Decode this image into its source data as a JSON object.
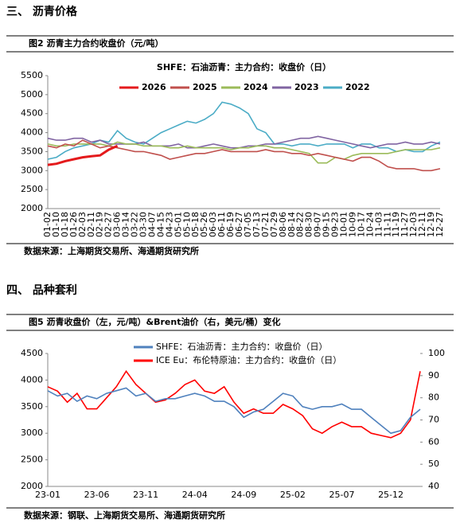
{
  "chart_data": [
    {
      "type": "line",
      "section": "三、  沥青价格",
      "title": "图2  沥青主力合约收盘价（元/吨）",
      "subtitle": "SHFE：石油沥青：主力合约：收盘价（日）",
      "source": "数据来源：上海期货交易所、海通期货研究所",
      "categories": [
        "01-02",
        "01-10",
        "01-18",
        "01-26",
        "02-03",
        "02-11",
        "02-19",
        "02-27",
        "03-06",
        "03-14",
        "03-22",
        "03-30",
        "04-07",
        "04-15",
        "04-23",
        "05-01",
        "05-10",
        "05-18",
        "05-26",
        "06-03",
        "06-11",
        "06-19",
        "06-27",
        "07-05",
        "07-13",
        "07-21",
        "07-29",
        "08-06",
        "08-14",
        "08-22",
        "08-30",
        "09-07",
        "09-15",
        "09-23",
        "10-01",
        "10-09",
        "10-17",
        "10-24",
        "11-03",
        "11-11",
        "11-19",
        "11-27",
        "12-03",
        "12-11",
        "12-19",
        "12-27"
      ],
      "ylim": [
        2000,
        5500
      ],
      "yticks": [
        2000,
        2500,
        3000,
        3500,
        4000,
        4500,
        5000,
        5500
      ],
      "series": [
        {
          "name": "2026",
          "color": "#e41a1c",
          "values": [
            3150,
            3180,
            3250,
            3300,
            3350,
            3380,
            3400,
            3550,
            3650,
            null,
            null,
            null,
            null,
            null,
            null,
            null,
            null,
            null,
            null,
            null,
            null,
            null,
            null,
            null,
            null,
            null,
            null,
            null,
            null,
            null,
            null,
            null,
            null,
            null,
            null,
            null,
            null,
            null,
            null,
            null,
            null,
            null,
            null,
            null,
            null,
            null
          ]
        },
        {
          "name": "2025",
          "color": "#c0504d",
          "values": [
            3650,
            3600,
            3700,
            3650,
            3800,
            3700,
            3600,
            3650,
            3600,
            3550,
            3500,
            3500,
            3450,
            3400,
            3300,
            3350,
            3400,
            3450,
            3450,
            3500,
            3550,
            3500,
            3500,
            3500,
            3500,
            3550,
            3500,
            3500,
            3450,
            3450,
            3400,
            3450,
            3400,
            3350,
            3300,
            3250,
            3350,
            3350,
            3250,
            3100,
            3050,
            3050,
            3050,
            3000,
            3000,
            3050
          ]
        },
        {
          "name": "2024",
          "color": "#9bbb59",
          "values": [
            3700,
            3650,
            3650,
            3700,
            3700,
            3700,
            3700,
            3650,
            3750,
            3700,
            3700,
            3650,
            3650,
            3650,
            3600,
            3600,
            3650,
            3600,
            3600,
            3600,
            3600,
            3550,
            3600,
            3600,
            3650,
            3650,
            3600,
            3600,
            3550,
            3500,
            3450,
            3200,
            3200,
            3350,
            3300,
            3400,
            3450,
            3450,
            3450,
            3450,
            3500,
            3550,
            3550,
            3550,
            3550,
            3600
          ]
        },
        {
          "name": "2023",
          "color": "#8064a2",
          "values": [
            3850,
            3800,
            3800,
            3850,
            3850,
            3750,
            3800,
            3700,
            3700,
            3700,
            3700,
            3750,
            3650,
            3650,
            3650,
            3700,
            3600,
            3600,
            3650,
            3700,
            3650,
            3600,
            3600,
            3650,
            3650,
            3700,
            3700,
            3750,
            3800,
            3850,
            3850,
            3900,
            3850,
            3800,
            3750,
            3700,
            3650,
            3600,
            3650,
            3700,
            3700,
            3750,
            3700,
            3700,
            3750,
            3700
          ]
        },
        {
          "name": "2022",
          "color": "#4bacc6",
          "values": [
            3300,
            3350,
            3500,
            3600,
            3650,
            3700,
            3800,
            3750,
            4050,
            3850,
            3750,
            3700,
            3850,
            4000,
            4100,
            4200,
            4300,
            4250,
            4350,
            4500,
            4800,
            4750,
            4650,
            4500,
            4100,
            4000,
            3700,
            3700,
            3650,
            3700,
            3700,
            3650,
            3700,
            3700,
            3700,
            3600,
            3700,
            3700,
            3600,
            3600,
            3500,
            3550,
            3500,
            3500,
            3650,
            3750
          ]
        }
      ]
    },
    {
      "type": "line",
      "section": "四、  品种套利",
      "title": "图5  沥青收盘价（左，元/吨）&Brent油价（右，美元/桶）变化",
      "source": "数据来源：钢联、上海期货交易所、海通期货研究所",
      "categories": [
        "23-01",
        null,
        null,
        null,
        null,
        "23-06",
        null,
        null,
        null,
        null,
        "23-11",
        null,
        null,
        null,
        null,
        "24-04",
        null,
        null,
        null,
        null,
        "24-09",
        null,
        null,
        null,
        null,
        "25-02",
        null,
        null,
        null,
        null,
        "25-07",
        null,
        null,
        null,
        null,
        "25-12",
        null,
        null,
        null
      ],
      "ylim": [
        2000,
        4500
      ],
      "yticks": [
        2000,
        2500,
        3000,
        3500,
        4000,
        4500
      ],
      "y2lim": [
        40,
        100
      ],
      "y2ticks": [
        40,
        50,
        60,
        70,
        80,
        90,
        100
      ],
      "series": [
        {
          "name": "SHFE：石油沥青：主力合约：收盘价（日）",
          "color": "#4f81bd",
          "values": [
            3800,
            3700,
            3750,
            3600,
            3700,
            3650,
            3750,
            3800,
            3850,
            3700,
            3750,
            3600,
            3650,
            3650,
            3700,
            3750,
            3700,
            3600,
            3600,
            3500,
            3300,
            3400,
            3450,
            3600,
            3750,
            3700,
            3500,
            3450,
            3500,
            3500,
            3550,
            3450,
            3450,
            3300,
            3150,
            3000,
            3050,
            3300,
            3450
          ]
        },
        {
          "name": "ICE Eu：布伦特原油：主力合约：收盘价（日）",
          "color": "#ff0000",
          "axis": "y2",
          "values": [
            85,
            83,
            78,
            82,
            75,
            75,
            80,
            85,
            92,
            86,
            82,
            78,
            79,
            82,
            86,
            88,
            83,
            82,
            85,
            78,
            73,
            75,
            73,
            73,
            77,
            75,
            72,
            66,
            64,
            67,
            69,
            67,
            67,
            64,
            63,
            62,
            64,
            70,
            92
          ]
        }
      ]
    }
  ]
}
